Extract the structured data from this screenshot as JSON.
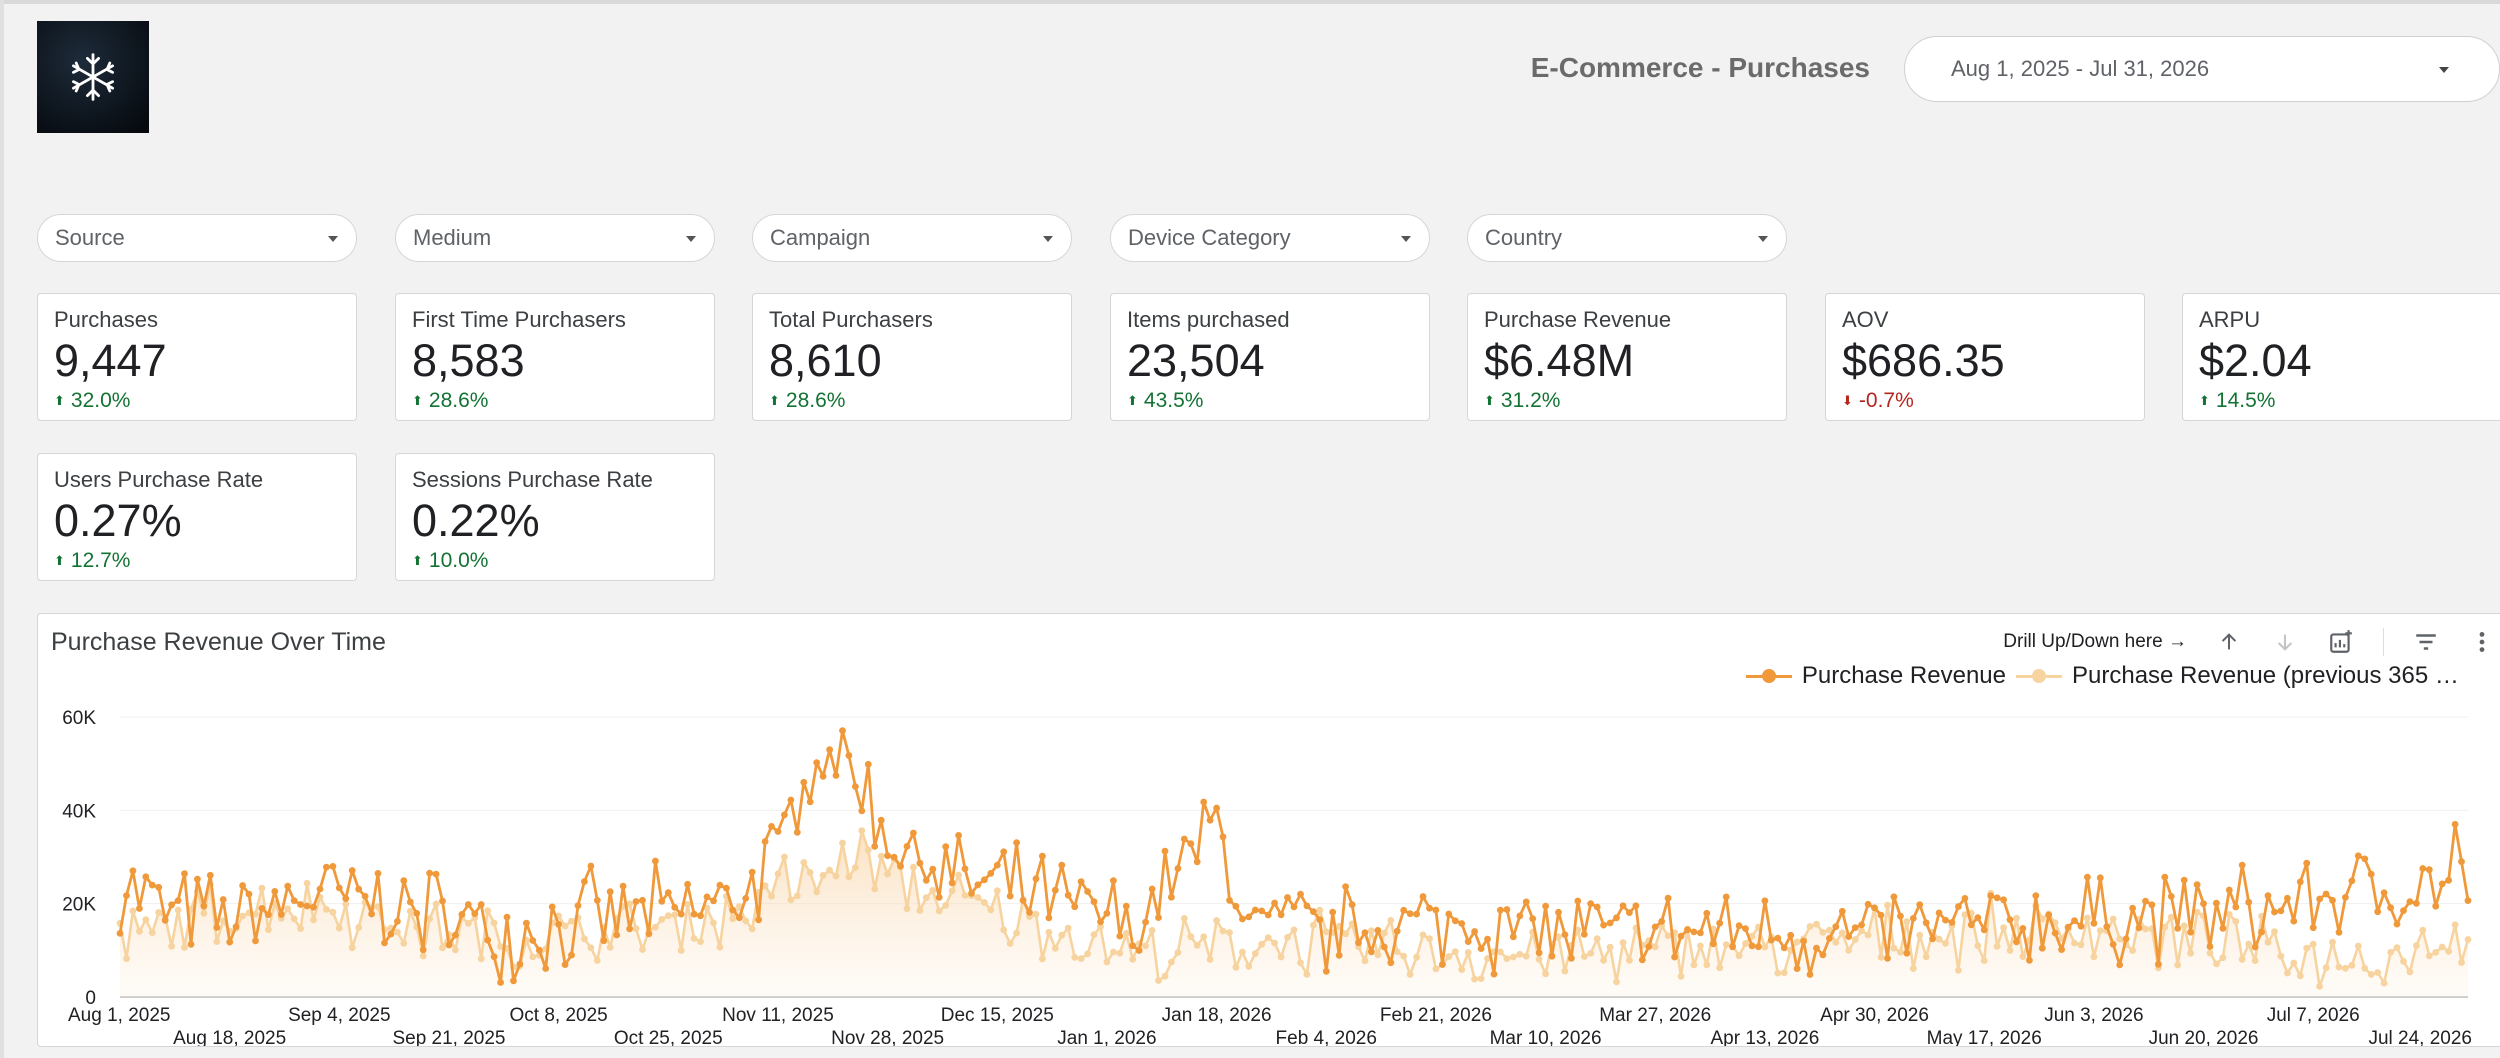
{
  "header": {
    "title": "E-Commerce - Purchases",
    "date_range": "Aug 1, 2025 - Jul 31, 2026"
  },
  "filters": [
    {
      "label": "Source"
    },
    {
      "label": "Medium"
    },
    {
      "label": "Campaign"
    },
    {
      "label": "Device Category"
    },
    {
      "label": "Country"
    }
  ],
  "kpis": [
    {
      "label": "Purchases",
      "value": "9,447",
      "delta": "32.0%",
      "direction": "up"
    },
    {
      "label": "First Time Purchasers",
      "value": "8,583",
      "delta": "28.6%",
      "direction": "up"
    },
    {
      "label": "Total Purchasers",
      "value": "8,610",
      "delta": "28.6%",
      "direction": "up"
    },
    {
      "label": "Items purchased",
      "value": "23,504",
      "delta": "43.5%",
      "direction": "up"
    },
    {
      "label": "Purchase Revenue",
      "value": "$6.48M",
      "delta": "31.2%",
      "direction": "up"
    },
    {
      "label": "AOV",
      "value": "$686.35",
      "delta": "-0.7%",
      "direction": "down"
    },
    {
      "label": "ARPU",
      "value": "$2.04",
      "delta": "14.5%",
      "direction": "up"
    },
    {
      "label": "Users Purchase Rate",
      "value": "0.27%",
      "delta": "12.7%",
      "direction": "up"
    },
    {
      "label": "Sessions Purchase Rate",
      "value": "0.22%",
      "delta": "10.0%",
      "direction": "up"
    }
  ],
  "colors": {
    "accent": "#f0993a",
    "accent_light": "#f7d39f",
    "positive": "#137333",
    "negative": "#b3261e"
  },
  "chart_card": {
    "title": "Purchase Revenue Over Time",
    "drill_hint": "Drill Up/Down here →",
    "icons": [
      "arrow-up-icon",
      "arrow-down-icon",
      "chart-settings-icon",
      "filter-icon",
      "more-vert-icon"
    ]
  },
  "chart_data": {
    "type": "line",
    "title": "Purchase Revenue Over Time",
    "x_start": "2025-08-01",
    "x_end": "2026-07-31",
    "y_ticks": [
      "0",
      "20K",
      "40K",
      "60K"
    ],
    "ylim": [
      0,
      60000
    ],
    "x_tick_labels_row1": [
      "Aug 1, 2025",
      "Sep 4, 2025",
      "Oct 8, 2025",
      "Nov 11, 2025",
      "Dec 15, 2025",
      "Jan 18, 2026",
      "Feb 21, 2026",
      "Mar 27, 2026",
      "Apr 30, 2026",
      "Jun 3, 2026",
      "Jul 7, 2026"
    ],
    "x_tick_labels_row2": [
      "Aug 18, 2025",
      "Sep 21, 2025",
      "Oct 25, 2025",
      "Nov 28, 2025",
      "Jan 1, 2026",
      "Feb 4, 2026",
      "Mar 10, 2026",
      "Apr 13, 2026",
      "May 17, 2026",
      "Jun 20, 2026",
      "Jul 24, 2026"
    ],
    "legend": "top-right",
    "grid": true,
    "series": [
      {
        "name": "Purchase Revenue",
        "color": "#f0993a",
        "keypoints": [
          [
            0,
            25000
          ],
          [
            8,
            18000
          ],
          [
            18,
            16000
          ],
          [
            30,
            22000
          ],
          [
            45,
            19000
          ],
          [
            60,
            14000
          ],
          [
            75,
            17000
          ],
          [
            90,
            18000
          ],
          [
            100,
            26000
          ],
          [
            105,
            40000
          ],
          [
            110,
            53000
          ],
          [
            115,
            45000
          ],
          [
            120,
            33000
          ],
          [
            130,
            25000
          ],
          [
            140,
            22000
          ],
          [
            150,
            18000
          ],
          [
            158,
            15000
          ],
          [
            170,
            38000
          ],
          [
            175,
            15000
          ],
          [
            190,
            14000
          ],
          [
            210,
            16000
          ],
          [
            230,
            13000
          ],
          [
            250,
            14000
          ],
          [
            270,
            13000
          ],
          [
            290,
            15000
          ],
          [
            310,
            17000
          ],
          [
            330,
            18000
          ],
          [
            345,
            22000
          ],
          [
            355,
            23000
          ],
          [
            364,
            24000
          ]
        ]
      },
      {
        "name": "Purchase Revenue (previous 365 da...",
        "color": "#f7d39f",
        "keypoints": [
          [
            0,
            12000
          ],
          [
            15,
            18000
          ],
          [
            30,
            20000
          ],
          [
            45,
            15000
          ],
          [
            60,
            12000
          ],
          [
            80,
            14000
          ],
          [
            95,
            18000
          ],
          [
            105,
            23000
          ],
          [
            115,
            30000
          ],
          [
            125,
            22000
          ],
          [
            140,
            16000
          ],
          [
            160,
            9000
          ],
          [
            180,
            12000
          ],
          [
            200,
            10000
          ],
          [
            220,
            9000
          ],
          [
            240,
            10000
          ],
          [
            260,
            11000
          ],
          [
            275,
            13000
          ],
          [
            290,
            14000
          ],
          [
            305,
            15000
          ],
          [
            320,
            12000
          ],
          [
            335,
            9000
          ],
          [
            350,
            8000
          ],
          [
            364,
            14000
          ]
        ]
      }
    ]
  }
}
